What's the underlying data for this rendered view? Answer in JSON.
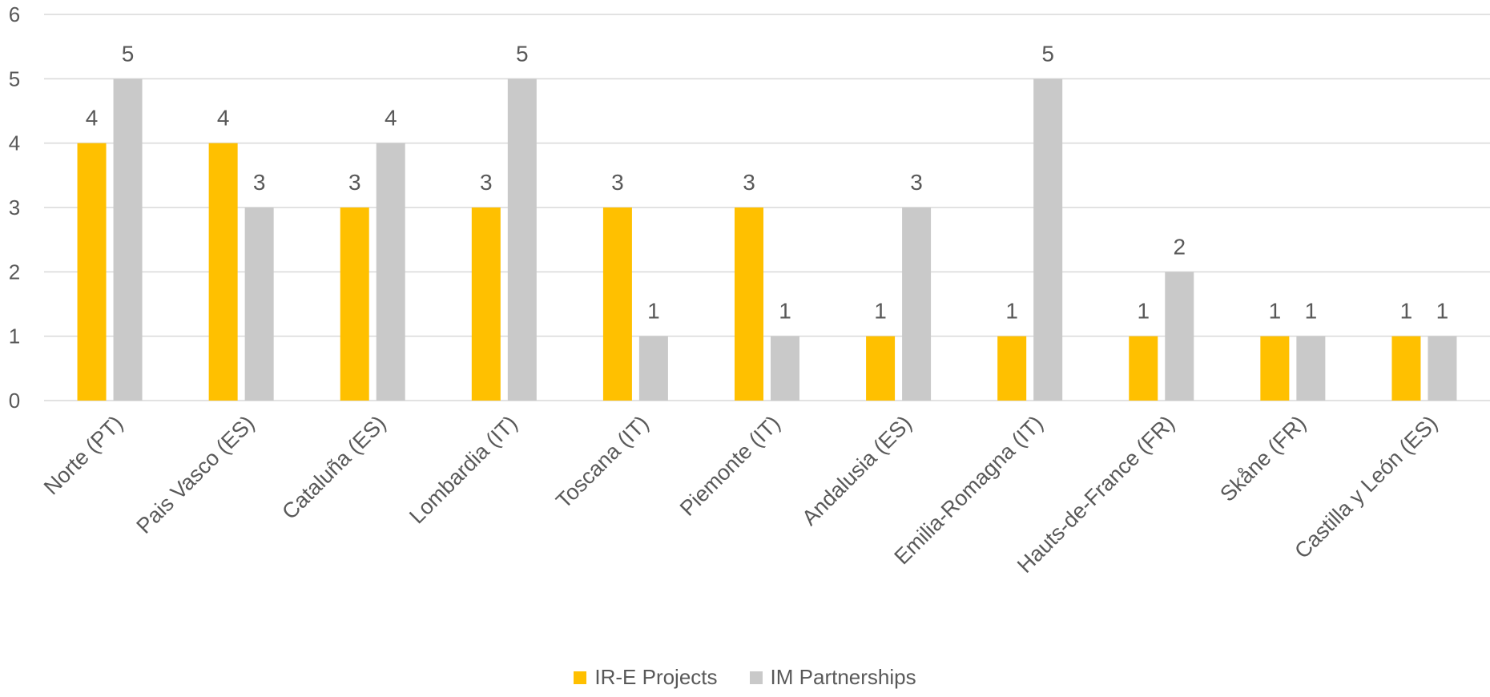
{
  "chart_data": {
    "type": "bar",
    "title": "",
    "xlabel": "",
    "ylabel": "",
    "ylim": [
      0,
      6
    ],
    "yticks": [
      0,
      1,
      2,
      3,
      4,
      5,
      6
    ],
    "grid": true,
    "legend_position": "bottom",
    "categories": [
      "Norte (PT)",
      "Pais Vasco (ES)",
      "Cataluña (ES)",
      "Lombardia (IT)",
      "Toscana (IT)",
      "Piemonte (IT)",
      "Andalusia (ES)",
      "Emilia-Romagna (IT)",
      "Hauts-de-France (FR)",
      "Skåne (FR)",
      "Castilla y León (ES)"
    ],
    "series": [
      {
        "name": "IR-E Projects",
        "color": "#FFC000",
        "values": [
          4,
          4,
          3,
          3,
          3,
          3,
          1,
          1,
          1,
          1,
          1
        ]
      },
      {
        "name": "IM Partnerships",
        "color": "#C9C9C9",
        "values": [
          5,
          3,
          4,
          5,
          1,
          1,
          3,
          5,
          2,
          1,
          1
        ]
      }
    ]
  }
}
